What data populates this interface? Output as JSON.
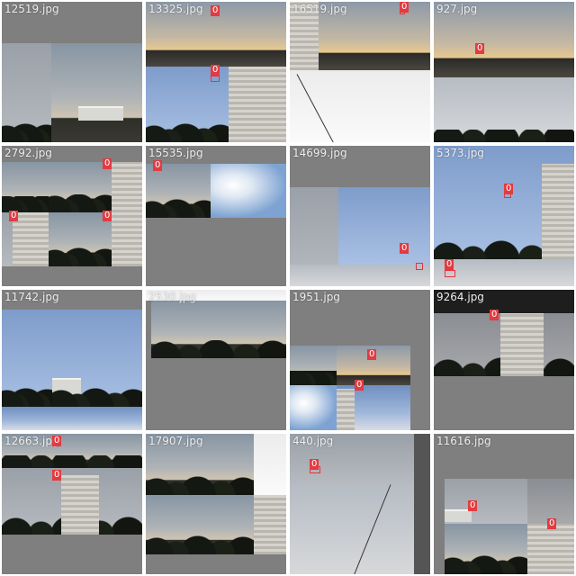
{
  "mosaic": {
    "tiles": [
      {
        "filename": "12519.jpg",
        "labels": []
      },
      {
        "filename": "13325.jpg",
        "labels": [
          "0",
          "0"
        ]
      },
      {
        "filename": "16519.jpg",
        "labels": [
          "0"
        ]
      },
      {
        "filename": "927.jpg",
        "labels": [
          "0"
        ]
      },
      {
        "filename": "2792.jpg",
        "labels": [
          "0",
          "0",
          "0"
        ]
      },
      {
        "filename": "15535.jpg",
        "labels": [
          "0"
        ]
      },
      {
        "filename": "14699.jpg",
        "labels": [
          "0"
        ]
      },
      {
        "filename": "5373.jpg",
        "labels": [
          "0",
          "0"
        ]
      },
      {
        "filename": "11742.jpg",
        "labels": []
      },
      {
        "filename": "2530.jpg",
        "labels": []
      },
      {
        "filename": "1951.jpg",
        "labels": [
          "0",
          "0"
        ]
      },
      {
        "filename": "9264.jpg",
        "labels": [
          "0"
        ]
      },
      {
        "filename": "12663.jpg",
        "labels": [
          "0",
          "0"
        ]
      },
      {
        "filename": "17907.jpg",
        "labels": []
      },
      {
        "filename": "440.jpg",
        "labels": [
          "0"
        ]
      },
      {
        "filename": "11616.jpg",
        "labels": [
          "0",
          "0"
        ]
      }
    ],
    "colors": {
      "box": "#e8333a",
      "label_bg": "#e23b41",
      "label_text": "#ffffff",
      "pad_gray": "#7f7f7f",
      "filename_text": "#eeeeee"
    }
  }
}
